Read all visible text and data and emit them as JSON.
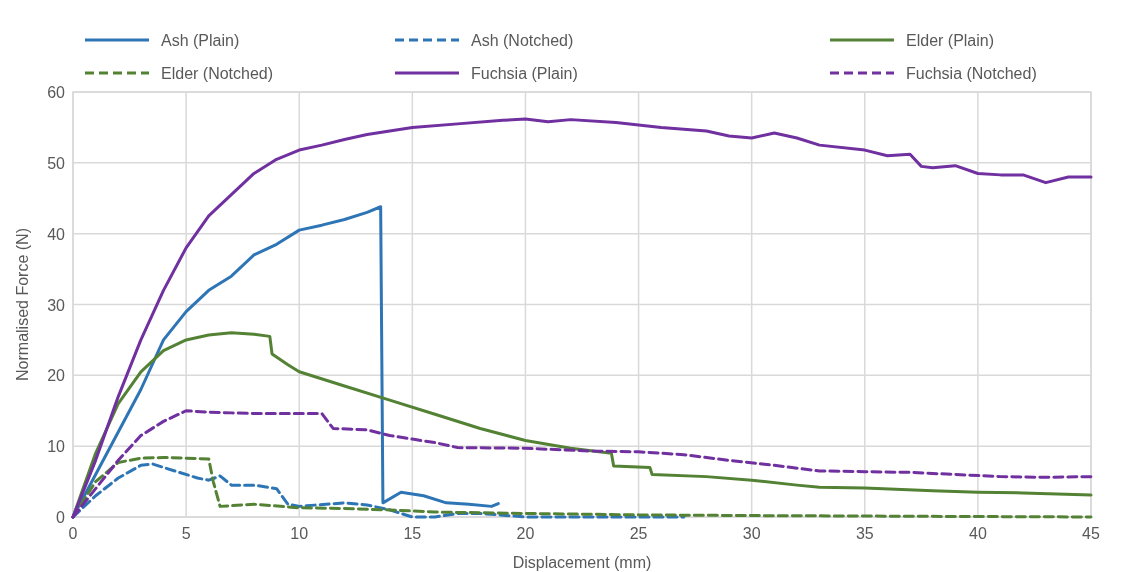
{
  "chart_data": {
    "type": "line",
    "xlabel": "Displacement (mm)",
    "ylabel": "Normalised Force (N)",
    "xlim": [
      0,
      45
    ],
    "ylim": [
      0,
      60
    ],
    "xticks": [
      0,
      5,
      10,
      15,
      20,
      25,
      30,
      35,
      40,
      45
    ],
    "yticks": [
      0,
      10,
      20,
      30,
      40,
      50,
      60
    ],
    "grid": true,
    "legend": "top",
    "marker": "none",
    "series": [
      {
        "name": "Ash (Plain)",
        "color": "#2e75b6",
        "line_style": "solid",
        "x": [
          0,
          1,
          2,
          3,
          4,
          5,
          6,
          7,
          8,
          9,
          10,
          11,
          12,
          13,
          13.6,
          13.7,
          14.5,
          15.5,
          16.5,
          17.5,
          18.5,
          18.8
        ],
        "values": [
          0,
          6,
          12,
          18,
          25,
          29,
          32,
          34,
          37,
          38.5,
          40.5,
          41.2,
          42,
          43,
          43.8,
          2,
          3.5,
          3,
          2,
          1.8,
          1.5,
          1.9
        ]
      },
      {
        "name": "Ash (Notched)",
        "color": "#2e75b6",
        "line_style": "dashed",
        "x": [
          0,
          1,
          2,
          3,
          3.5,
          4.5,
          5.5,
          6,
          6.5,
          7,
          8,
          9,
          9.5,
          10,
          12,
          13,
          14,
          15,
          16,
          17,
          18,
          20,
          25,
          27
        ],
        "values": [
          0,
          3,
          5.5,
          7.3,
          7.5,
          6.5,
          5.5,
          5.2,
          5.8,
          4.5,
          4.5,
          4,
          1.8,
          1.5,
          2,
          1.7,
          1,
          0,
          0,
          0.5,
          0.5,
          0,
          0,
          0
        ]
      },
      {
        "name": "Elder (Plain)",
        "color": "#548235",
        "line_style": "solid",
        "x": [
          0,
          1,
          2,
          3,
          4,
          5,
          6,
          7,
          8,
          8.7,
          8.8,
          9.5,
          10,
          12,
          14,
          16,
          18,
          20,
          22,
          23.8,
          23.9,
          25.5,
          25.6,
          28,
          30,
          32,
          33,
          35,
          38,
          40,
          42,
          45
        ],
        "values": [
          0,
          9,
          16,
          20.5,
          23.5,
          25,
          25.7,
          26,
          25.8,
          25.5,
          23,
          21.5,
          20.5,
          18.5,
          16.5,
          14.5,
          12.5,
          10.8,
          9.7,
          9,
          7.2,
          7,
          6,
          5.7,
          5.2,
          4.5,
          4.2,
          4.1,
          3.7,
          3.5,
          3.4,
          3.1
        ]
      },
      {
        "name": "Elder (Notched)",
        "color": "#548235",
        "line_style": "dashed",
        "x": [
          0,
          1,
          2,
          3,
          4,
          5,
          6,
          6.2,
          6.5,
          8,
          10,
          12,
          14,
          16,
          20,
          25,
          30,
          45
        ],
        "values": [
          0,
          5,
          7.7,
          8.3,
          8.4,
          8.3,
          8.2,
          5,
          1.5,
          1.8,
          1.3,
          1.2,
          1,
          0.7,
          0.5,
          0.3,
          0.2,
          0
        ]
      },
      {
        "name": "Fuchsia (Plain)",
        "color": "#7030a0",
        "line_style": "solid",
        "x": [
          0,
          1,
          2,
          3,
          4,
          5,
          6,
          7,
          8,
          9,
          10,
          11,
          12,
          13,
          14,
          15,
          17,
          19,
          20,
          21,
          22,
          24,
          26,
          28,
          29,
          30,
          31,
          32,
          33,
          35,
          36,
          37,
          37.5,
          38,
          39,
          40,
          41,
          42,
          43,
          44,
          45
        ],
        "values": [
          0,
          8,
          17,
          25,
          32,
          38,
          42.5,
          45.5,
          48.5,
          50.5,
          51.8,
          52.5,
          53.3,
          54,
          54.5,
          55,
          55.5,
          56,
          56.2,
          55.8,
          56.1,
          55.7,
          55,
          54.5,
          53.8,
          53.5,
          54.2,
          53.5,
          52.5,
          51.8,
          51,
          51.2,
          49.5,
          49.3,
          49.6,
          48.5,
          48.3,
          48.3,
          47.2,
          48,
          48
        ]
      },
      {
        "name": "Fuchsia (Notched)",
        "color": "#7030a0",
        "line_style": "dashed",
        "x": [
          0,
          1,
          2,
          3,
          4,
          5,
          6,
          7,
          8,
          10,
          11,
          11.5,
          13,
          14,
          15,
          16,
          17,
          20,
          23,
          25,
          27,
          29,
          31,
          33,
          35,
          37,
          39,
          41,
          43,
          45
        ],
        "values": [
          0,
          4,
          8,
          11.5,
          13.5,
          15,
          14.8,
          14.7,
          14.6,
          14.6,
          14.6,
          12.5,
          12.3,
          11.5,
          11,
          10.5,
          9.8,
          9.7,
          9.3,
          9.2,
          8.8,
          8,
          7.3,
          6.5,
          6.4,
          6.3,
          6,
          5.7,
          5.6,
          5.7
        ]
      }
    ]
  }
}
